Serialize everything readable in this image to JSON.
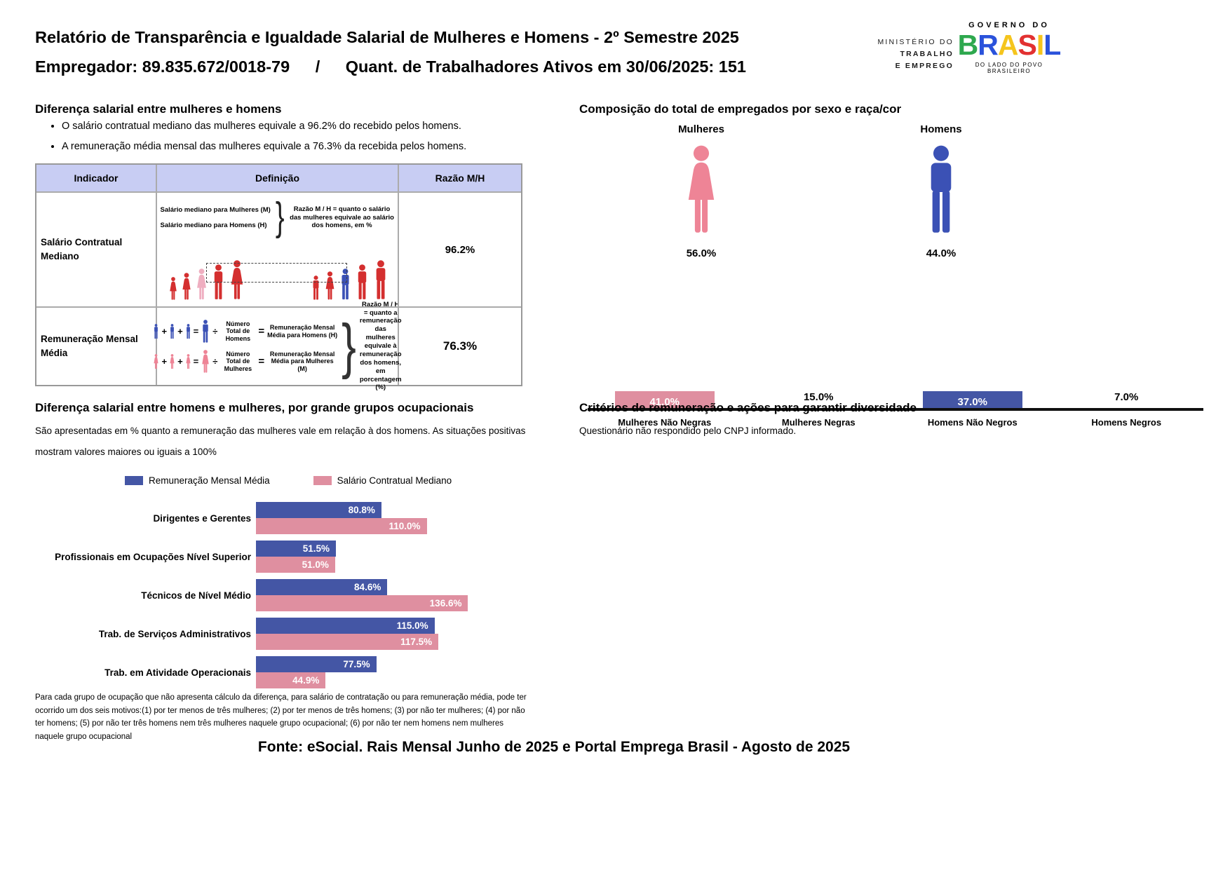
{
  "colors": {
    "blue": "#4456a5",
    "pink": "#df8fa0",
    "icon-blue": "#3b51b5",
    "icon-pink": "#ee8496",
    "red": "#d42f2f",
    "light-pink": "#efaec0",
    "lavender": "#c8cdf3",
    "table-border": "#ababab",
    "logo-green": "#2ea84e",
    "logo-blue": "#2a52db",
    "logo-yellow": "#f5c51d",
    "logo-red": "#e23131"
  },
  "header": {
    "title": "Relatório de Transparência e Igualdade Salarial de Mulheres e Homens - 2º Semestre 2025",
    "employer": "Empregador: 89.835.672/0018-79",
    "separator": "/",
    "workers": "Quant. de Trabalhadores Ativos em 30/06/2025: 151",
    "ministry": {
      "line1": "MINISTÉRIO DO",
      "line2": "TRABALHO",
      "line3": "E EMPREGO"
    },
    "gov": {
      "top": "GOVERNO DO",
      "letters": [
        "B",
        "R",
        "A",
        "S",
        "I",
        "L"
      ],
      "bottom": "DO LADO DO POVO BRASILEIRO"
    }
  },
  "salary_diff": {
    "title": "Diferença salarial entre mulheres e homens",
    "bullet1": "O salário contratual mediano das mulheres equivale a 96.2% do recebido pelos homens.",
    "bullet2": "A remuneração média mensal das mulheres equivale a 76.3% da recebida pelos homens.",
    "table": {
      "headers": [
        "Indicador",
        "Definição",
        "Razão M/H"
      ],
      "row1": {
        "indicator": "Salário Contratual Mediano",
        "def_line1": "Salário mediano para Mulheres (M)",
        "def_line2": "Salário mediano para Homens (H)",
        "brace": "}",
        "def_right": "Razão M / H = quanto o salário das mulheres equivale ao salário dos homens, em %",
        "ratio": "96.2%"
      },
      "row2": {
        "indicator": "Remuneração Mensal Média",
        "ops": {
          "plus": "+",
          "equals": "=",
          "divide": "÷"
        },
        "men_divisor": "Número Total de Homens",
        "men_result": "Remuneração Mensal Média para Homens (H)",
        "women_divisor": "Número Total de Mulheres",
        "women_result": "Remuneração Mensal Média para Mulheres (M)",
        "brace": "}",
        "def_right": "Razão M / H = quanto a remuneração das mulheres equivale à remuneração dos homens, em porcentagem (%)",
        "ratio": "76.3%"
      }
    }
  },
  "composition": {
    "title": "Composição do total de empregados por sexo e raça/cor",
    "female_label": "Mulheres",
    "female_value": "56.0%",
    "male_label": "Homens",
    "male_value": "44.0%",
    "race_bars": [
      {
        "label": "Mulheres Não Negras",
        "value": 41,
        "value_label": "41.0%"
      },
      {
        "label": "Mulheres Negras",
        "value": 15,
        "value_label": "15.0%"
      },
      {
        "label": "Homens Não Negros",
        "value": 37,
        "value_label": "37.0%"
      },
      {
        "label": "Homens Negros",
        "value": 7,
        "value_label": "7.0%"
      }
    ]
  },
  "criterios": {
    "title": "Critérios de remuneração e ações para garantir diversidade",
    "body": "Questionário não respondido pelo CNPJ informado."
  },
  "occ_chart": {
    "title": "Diferença salarial entre homens e mulheres, por grande grupos ocupacionais",
    "subtitle_line1": "São apresentadas em % quanto a remuneração das mulheres vale em relação à dos homens. As situações positivas",
    "subtitle_line2": "mostram valores maiores ou iguais a 100%",
    "legend_blue": "Remuneração Mensal Média",
    "legend_pink": "Salário Contratual Mediano",
    "groups": [
      {
        "label": "Dirigentes e Gerentes",
        "media": 80.8,
        "media_label": "80.8%",
        "mediano": 110.0,
        "mediano_label": "110.0%"
      },
      {
        "label": "Profissionais em Ocupações Nível Superior",
        "media": 51.5,
        "media_label": "51.5%",
        "mediano": 51.0,
        "mediano_label": "51.0%"
      },
      {
        "label": "Técnicos de Nível Médio",
        "media": 84.6,
        "media_label": "84.6%",
        "mediano": 136.6,
        "mediano_label": "136.6%"
      },
      {
        "label": "Trab. de Serviços Administrativos",
        "media": 115.0,
        "media_label": "115.0%",
        "mediano": 117.5,
        "mediano_label": "117.5%"
      },
      {
        "label": "Trab. em Atividade Operacionais",
        "media": 77.5,
        "media_label": "77.5%",
        "mediano": 44.9,
        "mediano_label": "44.9%"
      }
    ],
    "footnote": "Para cada grupo de ocupação que não apresenta cálculo da diferença, para salário de contratação ou para remuneração média, pode ter ocorrido um dos seis motivos:(1) por ter menos de três mulheres; (2) por ter menos de três homens; (3) por não ter mulheres; (4) por não ter homens; (5) por não ter três homens nem três mulheres naquele grupo ocupacional; (6) por não ter nem homens nem mulheres naquele grupo ocupacional"
  },
  "footer": "Fonte: eSocial. Rais Mensal Junho de 2025 e Portal Emprega Brasil - Agosto de 2025",
  "chart_data": [
    {
      "type": "bar",
      "title": "Composição do total de empregados por sexo e raça/cor",
      "categories": [
        "Mulheres",
        "Homens"
      ],
      "values": [
        56.0,
        44.0
      ],
      "unit": "%"
    },
    {
      "type": "bar",
      "title": "Composição do total de empregados por sexo e raça/cor (detalhe)",
      "categories": [
        "Mulheres Não Negras",
        "Mulheres Negras",
        "Homens Não Negros",
        "Homens Negros"
      ],
      "values": [
        41.0,
        15.0,
        37.0,
        7.0
      ],
      "unit": "%",
      "colors": [
        "#df8fa0",
        "#df8fa0",
        "#4456a5",
        "#4456a5"
      ],
      "grid": false,
      "legend": false
    },
    {
      "type": "bar",
      "orientation": "horizontal",
      "title": "Diferença salarial entre homens e mulheres, por grande grupos ocupacionais",
      "categories": [
        "Dirigentes e Gerentes",
        "Profissionais em Ocupações Nível Superior",
        "Técnicos de Nível Médio",
        "Trab. de Serviços Administrativos",
        "Trab. em Atividade Operacionais"
      ],
      "series": [
        {
          "name": "Remuneração Mensal Média",
          "values": [
            80.8,
            51.5,
            84.6,
            115.0,
            77.5
          ],
          "color": "#4456a5"
        },
        {
          "name": "Salário Contratual Mediano",
          "values": [
            110.0,
            51.0,
            136.6,
            117.5,
            44.9
          ],
          "color": "#df8fa0"
        }
      ],
      "xlim": [
        0,
        140
      ],
      "unit": "%",
      "legend_position": "top"
    }
  ]
}
